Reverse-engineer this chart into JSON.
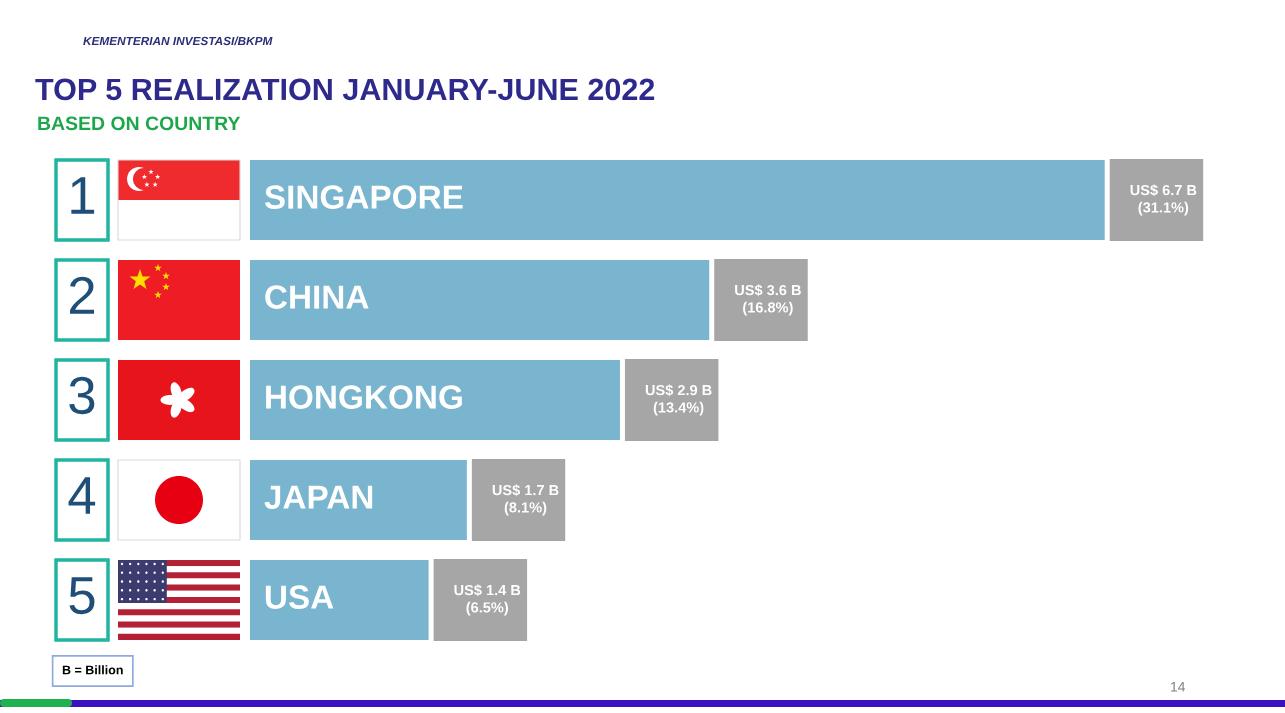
{
  "chart_data": {
    "type": "bar",
    "orientation": "horizontal",
    "title": "TOP 5 REALIZATION JANUARY-JUNE 2022",
    "subtitle": "BASED ON COUNTRY",
    "categories": [
      "SINGAPORE",
      "CHINA",
      "HONGKONG",
      "JAPAN",
      "USA"
    ],
    "values": [
      6.7,
      3.6,
      2.9,
      1.7,
      1.4
    ],
    "color": "#7ab5cf",
    "value_labels": [
      "US$ 6.7 B\n(31.1%)",
      "US$ 3.6 B\n(16.8%)",
      "US$ 2.9 B\n(13.4%)",
      "US$ 1.7 B\n(8.1%)",
      "US$ 1.4 B\n(6.5%)"
    ],
    "tick_labels": false,
    "annotations": [
      "1",
      "2",
      "3",
      "4",
      "5",
      "KEMENTERIAN INVESTASI/BKPM",
      "B = Billion",
      "14"
    ]
  }
}
